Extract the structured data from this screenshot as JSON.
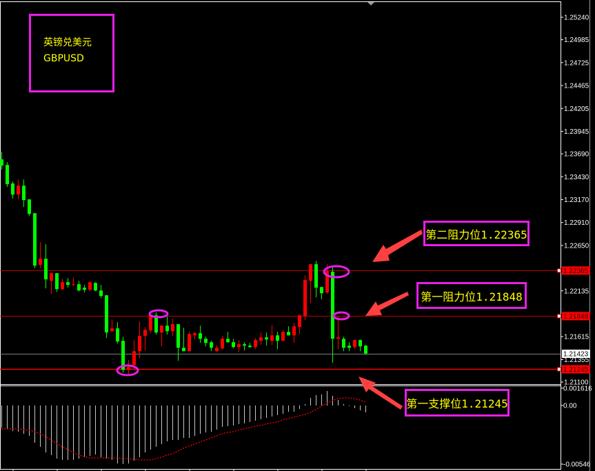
{
  "instrument": {
    "name_cn": "英镑兑美元",
    "symbol": "GBPUSD"
  },
  "colors": {
    "up_candle": "#ff0000",
    "down_candle": "#00ff00",
    "level_line": "#ff0000",
    "current_price_line": "#808080",
    "annotation_border": "#e81ee8",
    "annotation_text": "#ffff00",
    "arrow": "#ff4040",
    "histogram": "#c8c8c8",
    "signal": "#ff0000"
  },
  "price_axis": {
    "range": [
      1.211,
      1.2524
    ],
    "ticks": [
      "1.25240",
      "1.24985",
      "1.24725",
      "1.24465",
      "1.24205",
      "1.23945",
      "1.23690",
      "1.23430",
      "1.23170",
      "1.22910",
      "1.22650",
      "1.22135",
      "1.21615",
      "1.21355",
      "1.21100"
    ]
  },
  "levels": [
    {
      "name": "second-resistance",
      "value": 1.22365,
      "label": "1.22365",
      "annotation": "第二阻力位1.22365"
    },
    {
      "name": "first-resistance",
      "value": 1.21848,
      "label": "1.21848",
      "annotation": "第一阻力位1.21848"
    },
    {
      "name": "first-support",
      "value": 1.21245,
      "label": "1.21245",
      "annotation": "第一支撑位1.21245"
    }
  ],
  "current_price": {
    "value": 1.21423,
    "label": "1.21423"
  },
  "candles": [
    [
      1.23627,
      1.23713,
      1.2351,
      1.23557
    ],
    [
      1.23564,
      1.23596,
      1.23314,
      1.23345
    ],
    [
      1.23353,
      1.23376,
      1.23181,
      1.23228
    ],
    [
      1.23228,
      1.234,
      1.23173,
      1.23329
    ],
    [
      1.23329,
      1.234,
      1.23087,
      1.23165
    ],
    [
      1.23173,
      1.23173,
      1.22985,
      1.23008
    ],
    [
      1.23016,
      1.23016,
      1.2239,
      1.22421
    ],
    [
      1.22429,
      1.22687,
      1.2239,
      1.22499
    ],
    [
      1.22499,
      1.22664,
      1.22163,
      1.22265
    ],
    [
      1.22249,
      1.22343,
      1.221,
      1.22335
    ],
    [
      1.22335,
      1.22335,
      1.22124,
      1.22155
    ],
    [
      1.22155,
      1.22272,
      1.22139,
      1.22233
    ],
    [
      1.22233,
      1.2228,
      1.22171,
      1.22202
    ],
    [
      1.2221,
      1.22288,
      1.22186,
      1.22212
    ],
    [
      1.2221,
      1.22249,
      1.22131,
      1.22139
    ],
    [
      1.22171,
      1.22202,
      1.22116,
      1.22147
    ],
    [
      1.22147,
      1.22241,
      1.22131,
      1.22233
    ],
    [
      1.22225,
      1.22233,
      1.22131,
      1.22139
    ],
    [
      1.22139,
      1.22202,
      1.22053,
      1.22077
    ],
    [
      1.22085,
      1.22085,
      1.21599,
      1.21662
    ],
    [
      1.21677,
      1.2181,
      1.2167,
      1.21709
    ],
    [
      1.21709,
      1.21779,
      1.21536,
      1.2156
    ],
    [
      1.21568,
      1.21615,
      1.21208,
      1.21239
    ],
    [
      1.21239,
      1.21348,
      1.21192,
      1.2127
    ],
    [
      1.21294,
      1.21576,
      1.21255,
      1.2145
    ],
    [
      1.2145,
      1.21787,
      1.21372,
      1.21623
    ],
    [
      1.21623,
      1.21724,
      1.21458,
      1.21693
    ],
    [
      1.21685,
      1.21857,
      1.21662,
      1.21857
    ],
    [
      1.21857,
      1.21889,
      1.21638,
      1.21662
    ],
    [
      1.21662,
      1.21748,
      1.21505,
      1.2174
    ],
    [
      1.2174,
      1.21842,
      1.21638,
      1.21677
    ],
    [
      1.21677,
      1.21818,
      1.21623,
      1.21756
    ],
    [
      1.21756,
      1.21756,
      1.21341,
      1.21489
    ],
    [
      1.21489,
      1.21716,
      1.2145,
      1.2145
    ],
    [
      1.2145,
      1.2167,
      1.2145,
      1.21646
    ],
    [
      1.2163,
      1.2167,
      1.21583,
      1.21654
    ],
    [
      1.21654,
      1.2174,
      1.21544,
      1.21591
    ],
    [
      1.21591,
      1.21615,
      1.21505,
      1.21544
    ],
    [
      1.21552,
      1.21568,
      1.2145,
      1.21489
    ],
    [
      1.2145,
      1.21521,
      1.21442,
      1.21489
    ],
    [
      1.21482,
      1.21623,
      1.21466,
      1.21591
    ],
    [
      1.21591,
      1.2167,
      1.21544,
      1.21552
    ],
    [
      1.21552,
      1.21591,
      1.21482,
      1.21497
    ],
    [
      1.21497,
      1.21576,
      1.21442,
      1.21529
    ],
    [
      1.21529,
      1.21552,
      1.21458,
      1.21513
    ],
    [
      1.21513,
      1.21544,
      1.21489,
      1.21497
    ],
    [
      1.21497,
      1.21599,
      1.21474,
      1.21576
    ],
    [
      1.21568,
      1.21662,
      1.21521,
      1.21607
    ],
    [
      1.21607,
      1.21662,
      1.21513,
      1.21583
    ],
    [
      1.21568,
      1.21748,
      1.21521,
      1.2163
    ],
    [
      1.2163,
      1.2167,
      1.21474,
      1.21568
    ],
    [
      1.21568,
      1.21693,
      1.21568,
      1.2167
    ],
    [
      1.2167,
      1.21732,
      1.2163,
      1.2163
    ],
    [
      1.2163,
      1.21771,
      1.21544,
      1.21732
    ],
    [
      1.21724,
      1.21865,
      1.21646,
      1.21857
    ],
    [
      1.2185,
      1.22312,
      1.21803,
      1.22257
    ],
    [
      1.22249,
      1.22437,
      1.21998,
      1.22437
    ],
    [
      1.22437,
      1.22476,
      1.22061,
      1.22171
    ],
    [
      1.22178,
      1.22178,
      1.22038,
      1.22108
    ],
    [
      1.22116,
      1.22437,
      1.221,
      1.22359
    ],
    [
      1.22351,
      1.22398,
      1.21317,
      1.21591
    ],
    [
      1.21591,
      1.21842,
      1.21474,
      1.21607
    ],
    [
      1.21591,
      1.21615,
      1.2145,
      1.21489
    ],
    [
      1.21513,
      1.21552,
      1.2145,
      1.21489
    ],
    [
      1.21497,
      1.21583,
      1.21474,
      1.21576
    ],
    [
      1.21576,
      1.21583,
      1.2145,
      1.21505
    ],
    [
      1.21513,
      1.21521,
      1.21411,
      1.21423
    ]
  ],
  "oscillator": {
    "axis_labels": [
      "0.001616",
      "0.00",
      "-0.00546"
    ],
    "range": [
      -0.00546,
      0.001616
    ],
    "histogram": [
      -0.00206,
      -0.00218,
      -0.00238,
      -0.00244,
      -0.00263,
      -0.00283,
      -0.00347,
      -0.00385,
      -0.00437,
      -0.00462,
      -0.00495,
      -0.00507,
      -0.00507,
      -0.00507,
      -0.00495,
      -0.00482,
      -0.00469,
      -0.00456,
      -0.00482,
      -0.00495,
      -0.00507,
      -0.0054,
      -0.00546,
      -0.0054,
      -0.00514,
      -0.00482,
      -0.00437,
      -0.00411,
      -0.00385,
      -0.0036,
      -0.00334,
      -0.00321,
      -0.00321,
      -0.00302,
      -0.00302,
      -0.00283,
      -0.00263,
      -0.00251,
      -0.00244,
      -0.00225,
      -0.00199,
      -0.00193,
      -0.00186,
      -0.00173,
      -0.00167,
      -0.00154,
      -0.00141,
      -0.00128,
      -0.00116,
      -0.00103,
      -0.0009,
      -0.00077,
      -0.00058,
      -0.00058,
      -0.00032,
      0.00013,
      0.00071,
      0.00096,
      0.00103,
      0.00135,
      0.0009,
      0.00051,
      0.00013,
      -6e-05,
      -0.00026,
      -0.00045,
      -0.00064
    ],
    "signal": [
      -0.00218,
      -0.00218,
      -0.00218,
      -0.00218,
      -0.00225,
      -0.00231,
      -0.00244,
      -0.00263,
      -0.00289,
      -0.00321,
      -0.00353,
      -0.00385,
      -0.00411,
      -0.00437,
      -0.00462,
      -0.00475,
      -0.00488,
      -0.00488,
      -0.00488,
      -0.00488,
      -0.00488,
      -0.00488,
      -0.00495,
      -0.00495,
      -0.00501,
      -0.00507,
      -0.00507,
      -0.00507,
      -0.00495,
      -0.00482,
      -0.00462,
      -0.0045,
      -0.00424,
      -0.00398,
      -0.00379,
      -0.0036,
      -0.0034,
      -0.00321,
      -0.00302,
      -0.00283,
      -0.00263,
      -0.00251,
      -0.00244,
      -0.00231,
      -0.00218,
      -0.00206,
      -0.00193,
      -0.00186,
      -0.00173,
      -0.00161,
      -0.00154,
      -0.00135,
      -0.00122,
      -0.00109,
      -0.00096,
      -0.00084,
      -0.00064,
      -0.00039,
      -6e-05,
      0.00019,
      0.00045,
      0.00064,
      0.00071,
      0.00071,
      0.00064,
      0.00051,
      0.00032
    ]
  }
}
